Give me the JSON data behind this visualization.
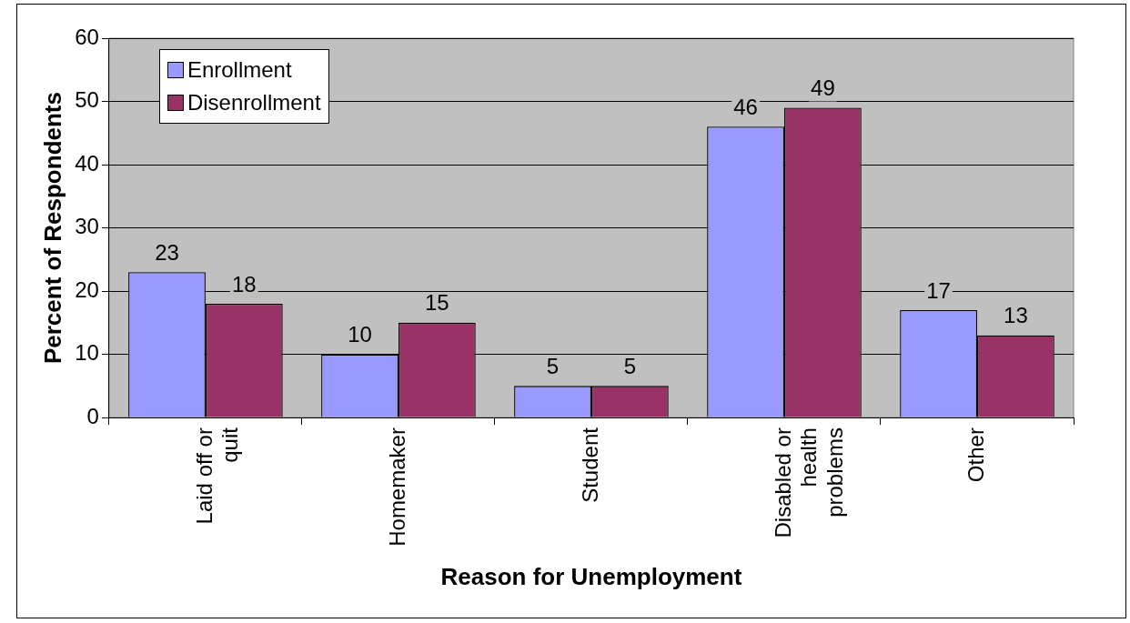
{
  "chart_data": {
    "type": "bar",
    "xlabel": "Reason for Unemployment",
    "ylabel": "Percent of Respondents",
    "categories": [
      "Laid off or quit",
      "Homemaker",
      "Student",
      "Disabled or health problems",
      "Other"
    ],
    "series": [
      {
        "name": "Enrollment",
        "color": "#9999ff",
        "values": [
          23,
          10,
          5,
          46,
          17
        ]
      },
      {
        "name": "Disenrollment",
        "color": "#993366",
        "values": [
          18,
          15,
          5,
          49,
          13
        ]
      }
    ],
    "ylim": [
      0,
      60
    ],
    "yticks": [
      0,
      10,
      20,
      30,
      40,
      50,
      60
    ],
    "grid": "y",
    "legend": "top left",
    "data_labels": true
  }
}
